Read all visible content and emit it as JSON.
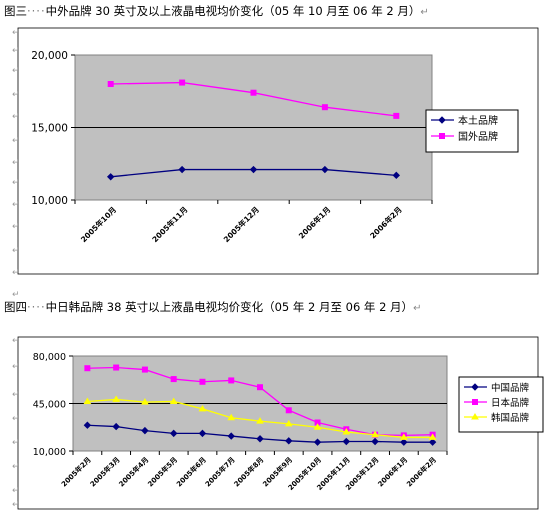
{
  "captions": [
    {
      "prefix": "图三",
      "dots": "····",
      "text": "中外品牌 30 英寸及以上液晶电视均价变化（05 年 10 月至 06 年 2 月）",
      "ret": "↵"
    },
    {
      "prefix": "图四",
      "dots": "····",
      "text": "中日韩品牌 38 英寸以上液晶电视均价变化（05 年 2 月至 06 年 2 月）",
      "ret": "↵"
    }
  ],
  "paragraph_mark": "↵",
  "chart_data": [
    {
      "type": "line",
      "categories": [
        "2005年10月",
        "2005年11月",
        "2005年12月",
        "2006年1月",
        "2006年2月"
      ],
      "ylim": [
        10000,
        20000
      ],
      "yticks": [
        10000,
        15000,
        20000
      ],
      "ytick_labels": [
        "10,000",
        "15,000",
        "20,000"
      ],
      "legend_position": "right",
      "series": [
        {
          "name": "本土品牌",
          "color": "#000080",
          "marker": "diamond",
          "values": [
            11600,
            12100,
            12100,
            12100,
            11700
          ]
        },
        {
          "name": "国外品牌",
          "color": "#ff00ff",
          "marker": "square",
          "values": [
            18000,
            18100,
            17400,
            16400,
            15800
          ]
        }
      ]
    },
    {
      "type": "line",
      "categories": [
        "2005年2月",
        "2005年3月",
        "2005年4月",
        "2005年5月",
        "2005年6月",
        "2005年7月",
        "2005年8月",
        "2005年9月",
        "2005年10月",
        "2005年11月",
        "2005年12月",
        "2006年1月",
        "2006年2月"
      ],
      "ylim": [
        10000,
        80000
      ],
      "yticks": [
        10000,
        45000,
        80000
      ],
      "ytick_labels": [
        "10,000",
        "45,000",
        "80,000"
      ],
      "legend_position": "right",
      "series": [
        {
          "name": "中国品牌",
          "color": "#000080",
          "marker": "diamond",
          "values": [
            29000,
            28000,
            25000,
            23000,
            23000,
            21000,
            19000,
            17500,
            16500,
            17000,
            17000,
            16500,
            16500
          ]
        },
        {
          "name": "日本品牌",
          "color": "#ff00ff",
          "marker": "square",
          "values": [
            71000,
            71500,
            70000,
            63000,
            61000,
            62000,
            57000,
            40000,
            31000,
            26000,
            22000,
            21500,
            22000
          ]
        },
        {
          "name": "韩国品牌",
          "color": "#ffff00",
          "marker": "triangle",
          "values": [
            46500,
            48000,
            46000,
            46500,
            41000,
            34500,
            32000,
            30000,
            27500,
            24000,
            22000,
            20000,
            20000
          ]
        }
      ]
    }
  ]
}
